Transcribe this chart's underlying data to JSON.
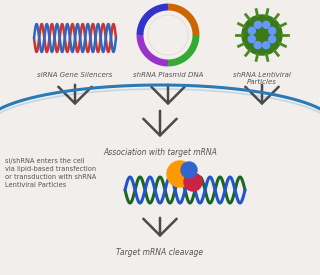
{
  "bg_color": "#f2eeeb",
  "label_sirna": "siRNA Gene Silencers",
  "label_shrna_plasmid": "shRNA Plasmid DNA",
  "label_shrna_lenti": "shRNA Lentiviral\nParticles",
  "label_association": "Association with target mRNA",
  "label_cleavage": "Target mRNA cleavage",
  "label_enters": "si/shRNA enters the cell\nvia lipid-based transfection\nor transduction with shRNA\nLentiviral Particles",
  "arrow_color": "#4a4a4a",
  "cell_line_color": "#2a7ab5",
  "cell_line_color2": "#aad0e8",
  "text_color": "#555555",
  "dna_red": "#cc3333",
  "dna_blue": "#3366bb",
  "plasmid_colors": [
    "#9933cc",
    "#3333cc",
    "#cc6600",
    "#33aa33"
  ],
  "virus_green": "#3a7a1a",
  "virus_spot": "#6699ff",
  "mrna_green": "#1a6622",
  "mrna_blue": "#2255cc",
  "risc_orange": "#ff9900",
  "risc_pink": "#cc2244",
  "risc_blue": "#3366cc"
}
